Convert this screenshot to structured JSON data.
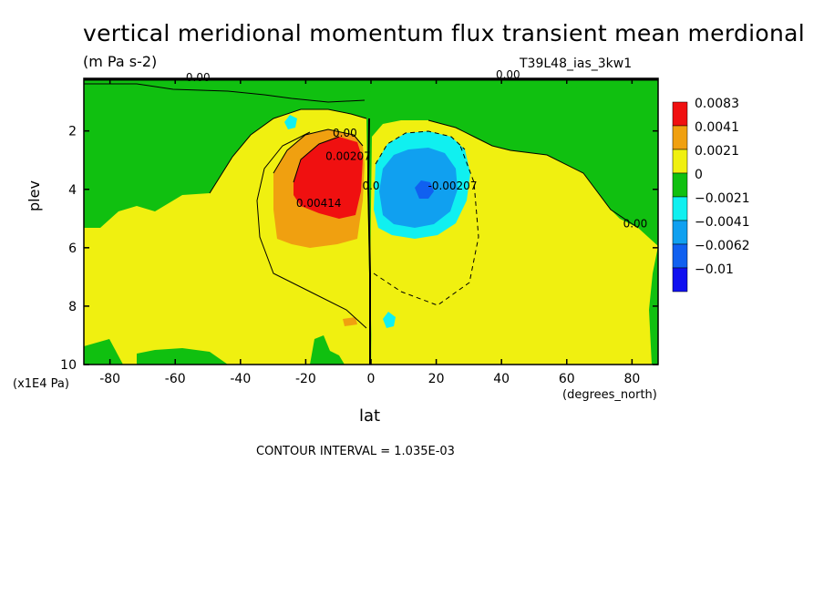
{
  "chart_data": {
    "type": "heatmap",
    "title": "vertical meridional momentum flux transient mean merdional",
    "units": "(m Pa s-2)",
    "run_id": "T39L48_ias_3kw1",
    "xlabel": "lat",
    "xunit": "(degrees_north)",
    "ylabel": "plev",
    "yunit": "(x1E4 Pa)",
    "xlim": [
      -88,
      88
    ],
    "ylim": [
      10,
      0.2
    ],
    "y_reversed": true,
    "xticks": [
      -80,
      -60,
      -40,
      -20,
      0,
      20,
      40,
      60,
      80
    ],
    "xtick_labels": [
      "-80",
      "-60",
      "-40",
      "-20",
      "0",
      "20",
      "40",
      "60",
      "80"
    ],
    "yticks": [
      2,
      4,
      6,
      8,
      10
    ],
    "ytick_labels": [
      "2",
      "4",
      "6",
      "8",
      "10"
    ],
    "contour_interval_text": "CONTOUR INTERVAL = 1.035E-03",
    "legend": {
      "placement": "right",
      "levels": [
        "0.0083",
        "0.0041",
        "0.0021",
        "0",
        "−0.0021",
        "−0.0041",
        "−0.0062",
        "−0.01"
      ],
      "colors": [
        "#f01010",
        "#f0a010",
        "#f0f010",
        "#10c010",
        "#10f0f0",
        "#10a0f0",
        "#1060f0",
        "#1010f0"
      ]
    },
    "features": [
      {
        "name": "positive maximum",
        "center": [
          -15,
          3.9
        ],
        "value": 0.0083
      },
      {
        "name": "negative minimum",
        "center": [
          16,
          3.9
        ],
        "value": -0.01
      }
    ],
    "contour_labels": [
      {
        "text": "0.00",
        "lat": -53,
        "plev": 0.3
      },
      {
        "text": "0.00",
        "lat": 42,
        "plev": 0.2
      },
      {
        "text": "0.00",
        "lat": -8,
        "plev": 2.2
      },
      {
        "text": "0.00207",
        "lat": -7,
        "plev": 3.0
      },
      {
        "text": "0.00414",
        "lat": -16,
        "plev": 4.6
      },
      {
        "text": "0.0",
        "lat": 0,
        "plev": 4.0
      },
      {
        "text": "-0.00207",
        "lat": 25,
        "plev": 4.0
      },
      {
        "text": "0.00",
        "lat": 81,
        "plev": 5.3
      }
    ]
  }
}
